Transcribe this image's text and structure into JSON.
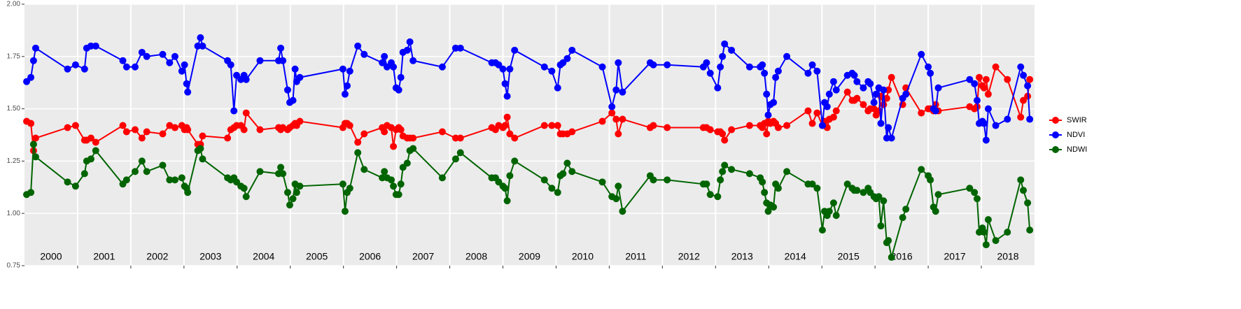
{
  "chart_data": {
    "type": "line",
    "x": [
      2000.04,
      2000.12,
      2000.17,
      2000.21,
      2000.81,
      2000.96,
      2001.13,
      2001.17,
      2001.25,
      2001.34,
      2001.85,
      2001.92,
      2002.08,
      2002.21,
      2002.3,
      2002.6,
      2002.73,
      2002.83,
      2002.96,
      2003.01,
      2003.05,
      2003.07,
      2003.26,
      2003.31,
      2003.35,
      2003.82,
      2003.88,
      2003.94,
      2003.99,
      2004.07,
      2004.13,
      2004.17,
      2004.43,
      2004.78,
      2004.82,
      2004.86,
      2004.95,
      2004.99,
      2005.05,
      2005.09,
      2005.12,
      2005.18,
      2005.99,
      2006.03,
      2006.07,
      2006.12,
      2006.27,
      2006.39,
      2006.73,
      2006.77,
      2006.82,
      2006.9,
      2006.94,
      2006.99,
      2007.04,
      2007.08,
      2007.12,
      2007.2,
      2007.25,
      2007.31,
      2007.86,
      2008.11,
      2008.2,
      2008.79,
      2008.86,
      2008.92,
      2009.0,
      2009.04,
      2009.08,
      2009.13,
      2009.22,
      2009.78,
      2009.92,
      2010.03,
      2010.08,
      2010.13,
      2010.21,
      2010.3,
      2010.87,
      2011.05,
      2011.13,
      2011.17,
      2011.25,
      2011.77,
      2011.83,
      2012.09,
      2012.77,
      2012.83,
      2012.9,
      2013.04,
      2013.09,
      2013.13,
      2013.17,
      2013.3,
      2013.64,
      2013.84,
      2013.88,
      2013.92,
      2013.96,
      2013.99,
      2014.03,
      2014.09,
      2014.13,
      2014.18,
      2014.34,
      2014.74,
      2014.82,
      2014.91,
      2015.01,
      2015.05,
      2015.1,
      2015.14,
      2015.22,
      2015.27,
      2015.48,
      2015.57,
      2015.61,
      2015.66,
      2015.78,
      2015.87,
      2015.91,
      2015.98,
      2016.02,
      2016.07,
      2016.11,
      2016.16,
      2016.22,
      2016.25,
      2016.31,
      2016.52,
      2016.58,
      2016.87,
      2017.0,
      2017.04,
      2017.1,
      2017.14,
      2017.19,
      2017.78,
      2017.87,
      2017.92,
      2017.96,
      2018.02,
      2018.05,
      2018.09,
      2018.13,
      2018.27,
      2018.49,
      2018.74,
      2018.79,
      2018.87,
      2018.91
    ],
    "series": [
      {
        "name": "SWIR",
        "color": "#ff0000",
        "values": [
          1.44,
          1.43,
          1.3,
          1.36,
          1.41,
          1.42,
          1.35,
          1.35,
          1.36,
          1.34,
          1.42,
          1.39,
          1.4,
          1.36,
          1.39,
          1.38,
          1.42,
          1.41,
          1.42,
          1.4,
          1.41,
          1.4,
          1.33,
          1.33,
          1.37,
          1.36,
          1.4,
          1.41,
          1.42,
          1.42,
          1.4,
          1.48,
          1.4,
          1.41,
          1.4,
          1.41,
          1.4,
          1.41,
          1.42,
          1.43,
          1.42,
          1.44,
          1.41,
          1.43,
          1.43,
          1.42,
          1.34,
          1.38,
          1.41,
          1.39,
          1.42,
          1.41,
          1.32,
          1.4,
          1.41,
          1.4,
          1.37,
          1.36,
          1.36,
          1.36,
          1.39,
          1.36,
          1.36,
          1.41,
          1.4,
          1.42,
          1.41,
          1.42,
          1.46,
          1.38,
          1.36,
          1.42,
          1.42,
          1.42,
          1.38,
          1.38,
          1.38,
          1.39,
          1.44,
          1.48,
          1.45,
          1.38,
          1.45,
          1.41,
          1.42,
          1.41,
          1.41,
          1.41,
          1.4,
          1.39,
          1.39,
          1.38,
          1.35,
          1.4,
          1.42,
          1.42,
          1.41,
          1.43,
          1.38,
          1.44,
          1.43,
          1.44,
          1.43,
          1.41,
          1.42,
          1.49,
          1.43,
          1.48,
          1.42,
          1.44,
          1.41,
          1.45,
          1.46,
          1.49,
          1.58,
          1.54,
          1.54,
          1.55,
          1.52,
          1.49,
          1.5,
          1.5,
          1.47,
          1.49,
          1.56,
          1.52,
          1.55,
          1.59,
          1.65,
          1.52,
          1.6,
          1.48,
          1.5,
          1.5,
          1.49,
          1.52,
          1.49,
          1.51,
          1.5,
          1.51,
          1.65,
          1.61,
          1.6,
          1.64,
          1.57,
          1.7,
          1.64,
          1.46,
          1.54,
          1.56,
          1.64
        ]
      },
      {
        "name": "NDVI",
        "color": "#0000ff",
        "values": [
          1.63,
          1.65,
          1.73,
          1.79,
          1.69,
          1.71,
          1.69,
          1.79,
          1.8,
          1.8,
          1.73,
          1.7,
          1.7,
          1.77,
          1.75,
          1.76,
          1.72,
          1.75,
          1.68,
          1.71,
          1.62,
          1.58,
          1.8,
          1.84,
          1.8,
          1.73,
          1.71,
          1.49,
          1.66,
          1.64,
          1.66,
          1.64,
          1.73,
          1.73,
          1.79,
          1.73,
          1.59,
          1.53,
          1.54,
          1.69,
          1.63,
          1.65,
          1.69,
          1.57,
          1.61,
          1.68,
          1.8,
          1.76,
          1.72,
          1.75,
          1.7,
          1.72,
          1.7,
          1.6,
          1.59,
          1.65,
          1.77,
          1.78,
          1.82,
          1.73,
          1.7,
          1.79,
          1.79,
          1.72,
          1.72,
          1.71,
          1.69,
          1.62,
          1.56,
          1.69,
          1.78,
          1.7,
          1.68,
          1.6,
          1.71,
          1.72,
          1.74,
          1.78,
          1.7,
          1.51,
          1.59,
          1.72,
          1.58,
          1.72,
          1.71,
          1.71,
          1.7,
          1.72,
          1.67,
          1.6,
          1.7,
          1.75,
          1.81,
          1.78,
          1.7,
          1.7,
          1.71,
          1.67,
          1.57,
          1.47,
          1.52,
          1.53,
          1.65,
          1.68,
          1.75,
          1.67,
          1.71,
          1.68,
          1.42,
          1.53,
          1.51,
          1.57,
          1.63,
          1.59,
          1.66,
          1.67,
          1.66,
          1.63,
          1.6,
          1.63,
          1.62,
          1.53,
          1.57,
          1.6,
          1.43,
          1.59,
          1.36,
          1.41,
          1.36,
          1.55,
          1.57,
          1.76,
          1.7,
          1.67,
          1.5,
          1.49,
          1.6,
          1.64,
          1.62,
          1.54,
          1.43,
          1.44,
          1.43,
          1.35,
          1.5,
          1.42,
          1.45,
          1.7,
          1.66,
          1.61,
          1.45
        ]
      },
      {
        "name": "NDWI",
        "color": "#006400",
        "values": [
          1.09,
          1.1,
          1.33,
          1.27,
          1.15,
          1.13,
          1.19,
          1.25,
          1.26,
          1.3,
          1.14,
          1.16,
          1.2,
          1.25,
          1.2,
          1.23,
          1.16,
          1.16,
          1.17,
          1.13,
          1.12,
          1.1,
          1.3,
          1.31,
          1.26,
          1.17,
          1.16,
          1.17,
          1.15,
          1.13,
          1.12,
          1.08,
          1.2,
          1.19,
          1.22,
          1.19,
          1.1,
          1.04,
          1.07,
          1.14,
          1.1,
          1.13,
          1.14,
          1.01,
          1.1,
          1.12,
          1.29,
          1.21,
          1.17,
          1.2,
          1.17,
          1.16,
          1.13,
          1.09,
          1.09,
          1.14,
          1.22,
          1.24,
          1.3,
          1.31,
          1.17,
          1.26,
          1.29,
          1.17,
          1.17,
          1.15,
          1.13,
          1.12,
          1.06,
          1.18,
          1.25,
          1.16,
          1.12,
          1.1,
          1.18,
          1.19,
          1.24,
          1.2,
          1.15,
          1.08,
          1.07,
          1.13,
          1.01,
          1.18,
          1.16,
          1.16,
          1.14,
          1.14,
          1.09,
          1.08,
          1.16,
          1.2,
          1.23,
          1.21,
          1.19,
          1.17,
          1.15,
          1.1,
          1.05,
          1.01,
          1.04,
          1.03,
          1.14,
          1.12,
          1.2,
          1.14,
          1.14,
          1.12,
          0.92,
          1.01,
          0.99,
          1.01,
          1.05,
          0.99,
          1.14,
          1.12,
          1.11,
          1.11,
          1.1,
          1.12,
          1.1,
          1.08,
          1.07,
          1.08,
          0.94,
          1.06,
          0.86,
          0.87,
          0.79,
          0.98,
          1.02,
          1.21,
          1.18,
          1.16,
          1.03,
          1.01,
          1.09,
          1.12,
          1.1,
          1.07,
          0.91,
          0.93,
          0.91,
          0.85,
          0.97,
          0.87,
          0.91,
          1.16,
          1.11,
          1.05,
          0.92
        ]
      }
    ],
    "xlim": [
      2000,
      2019
    ],
    "xticks": [
      2001,
      2002,
      2003,
      2004,
      2005,
      2006,
      2007,
      2008,
      2009,
      2010,
      2011,
      2012,
      2013,
      2014,
      2015,
      2016,
      2017,
      2018
    ],
    "ylim": [
      0.75,
      2
    ],
    "yticks": [
      {
        "value": 0.75,
        "label": "0.75"
      },
      {
        "value": 1,
        "label": "1.00"
      },
      {
        "value": 1.25,
        "label": "1.25"
      },
      {
        "value": 1.5,
        "label": "1.50"
      },
      {
        "value": 1.75,
        "label": "1.75"
      },
      {
        "value": 2,
        "label": "2.00"
      }
    ],
    "grid": true,
    "legend": "right",
    "annotations": [
      {
        "text": "2000",
        "x": 2000.5,
        "y": 0.79
      },
      {
        "text": "2001",
        "x": 2001.5,
        "y": 0.79
      },
      {
        "text": "2002",
        "x": 2002.5,
        "y": 0.79
      },
      {
        "text": "2003",
        "x": 2003.5,
        "y": 0.79
      },
      {
        "text": "2004",
        "x": 2004.5,
        "y": 0.79
      },
      {
        "text": "2005",
        "x": 2005.5,
        "y": 0.79
      },
      {
        "text": "2006",
        "x": 2006.5,
        "y": 0.79
      },
      {
        "text": "2007",
        "x": 2007.5,
        "y": 0.79
      },
      {
        "text": "2008",
        "x": 2008.5,
        "y": 0.79
      },
      {
        "text": "2009",
        "x": 2009.5,
        "y": 0.79
      },
      {
        "text": "2010",
        "x": 2010.5,
        "y": 0.79
      },
      {
        "text": "2011",
        "x": 2011.5,
        "y": 0.79
      },
      {
        "text": "2012",
        "x": 2012.5,
        "y": 0.79
      },
      {
        "text": "2013",
        "x": 2013.5,
        "y": 0.79
      },
      {
        "text": "2014",
        "x": 2014.5,
        "y": 0.79
      },
      {
        "text": "2015",
        "x": 2015.5,
        "y": 0.79
      },
      {
        "text": "2016",
        "x": 2016.5,
        "y": 0.79
      },
      {
        "text": "2017",
        "x": 2017.5,
        "y": 0.79
      },
      {
        "text": "2018",
        "x": 2018.5,
        "y": 0.79
      }
    ]
  }
}
